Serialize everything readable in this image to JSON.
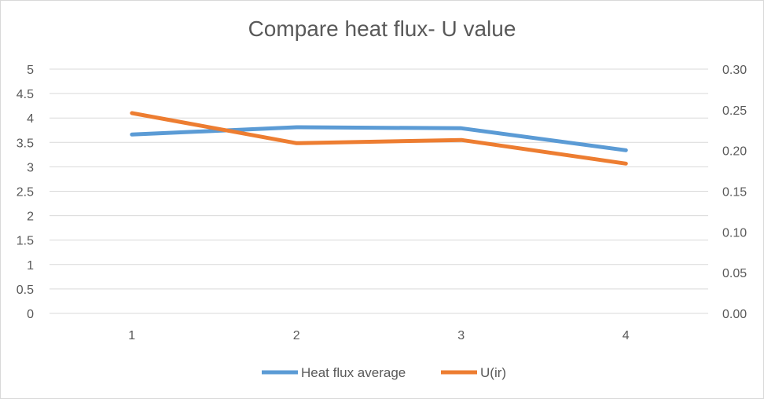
{
  "chart_data": {
    "type": "line",
    "title": "Compare heat flux- U value",
    "categories": [
      "1",
      "2",
      "3",
      "4"
    ],
    "y_left": {
      "ylim": [
        0,
        5
      ],
      "ticks": [
        "0",
        "0.5",
        "1",
        "1.5",
        "2",
        "2.5",
        "3",
        "3.5",
        "4",
        "4.5",
        "5"
      ]
    },
    "y_right": {
      "ylim": [
        0,
        0.3
      ],
      "ticks": [
        "0.00",
        "0.05",
        "0.10",
        "0.15",
        "0.20",
        "0.25",
        "0.30"
      ]
    },
    "series": [
      {
        "name": "Heat flux average",
        "axis": "left",
        "color": "#5b9bd5",
        "values": [
          3.66,
          3.81,
          3.79,
          3.34
        ]
      },
      {
        "name": "U(ir)",
        "axis": "right",
        "color": "#ed7d31",
        "values": [
          0.246,
          0.209,
          0.213,
          0.184
        ]
      }
    ],
    "grid": true,
    "legend": "bottom"
  }
}
